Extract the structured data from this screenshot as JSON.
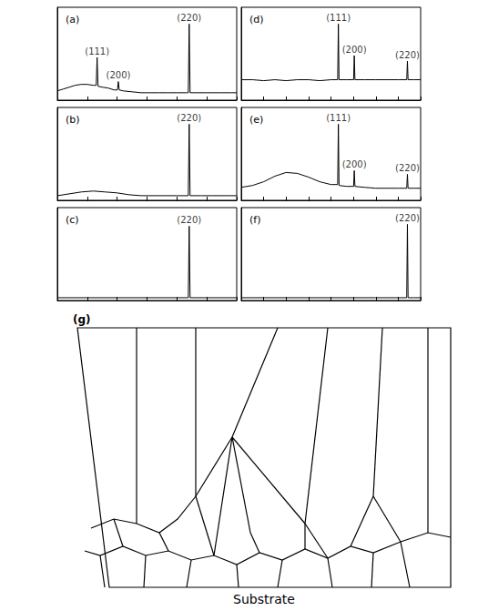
{
  "chart_data": [
    {
      "type": "line",
      "title": "(a)",
      "color": "#000000",
      "grid": false,
      "tick_labels": false,
      "xlim": [
        30,
        90
      ],
      "xticks": [
        30,
        40,
        50,
        60,
        70,
        80,
        90
      ],
      "ylim": [
        0,
        100
      ],
      "x": [
        30,
        32,
        34,
        36,
        38,
        40,
        42,
        43.0,
        43.3,
        43.6,
        45,
        47,
        49,
        50.1,
        50.4,
        50.7,
        52,
        55,
        58,
        61,
        64,
        67,
        70,
        73,
        73.8,
        74.1,
        74.4,
        76,
        80,
        84,
        88,
        90
      ],
      "values": [
        10,
        12,
        14,
        16,
        17,
        17,
        16,
        16,
        46,
        15,
        14,
        13,
        11,
        11,
        20,
        11,
        10,
        9,
        8,
        8,
        8,
        8,
        8,
        8,
        8,
        82,
        8,
        8,
        8,
        8,
        8,
        8
      ],
      "annotations": [
        {
          "x": 43.3,
          "label": "(111)"
        },
        {
          "x": 50.4,
          "label": "(200)"
        },
        {
          "x": 74.1,
          "label": "(220)"
        }
      ]
    },
    {
      "type": "line",
      "title": "(b)",
      "color": "#000000",
      "grid": false,
      "tick_labels": false,
      "xlim": [
        30,
        90
      ],
      "xticks": [
        30,
        40,
        50,
        60,
        70,
        80,
        90
      ],
      "ylim": [
        0,
        100
      ],
      "x": [
        30,
        34,
        38,
        42,
        46,
        50,
        54,
        58,
        62,
        66,
        70,
        73.8,
        74.1,
        74.4,
        78,
        82,
        86,
        90
      ],
      "values": [
        5,
        7,
        9,
        10,
        9,
        8,
        6,
        5,
        5,
        5,
        5,
        5,
        82,
        5,
        5,
        5,
        5,
        5
      ],
      "annotations": [
        {
          "x": 74.1,
          "label": "(220)"
        }
      ]
    },
    {
      "type": "line",
      "title": "(c)",
      "color": "#000000",
      "grid": false,
      "tick_labels": false,
      "xlim": [
        30,
        90
      ],
      "xticks": [
        30,
        40,
        50,
        60,
        70,
        80,
        90
      ],
      "ylim": [
        0,
        100
      ],
      "x": [
        30,
        40,
        50,
        60,
        70,
        73.8,
        74.1,
        74.4,
        80,
        90
      ],
      "values": [
        3,
        3,
        3,
        3,
        3,
        3,
        80,
        3,
        3,
        3
      ],
      "annotations": [
        {
          "x": 74.1,
          "label": "(220)"
        }
      ]
    },
    {
      "type": "line",
      "title": "(d)",
      "color": "#000000",
      "grid": false,
      "tick_labels": false,
      "xlim": [
        0,
        80
      ],
      "xticks": [
        0,
        10,
        20,
        30,
        40,
        50,
        60,
        70,
        80
      ],
      "ylim": [
        0,
        100
      ],
      "x": [
        0,
        5,
        10,
        15,
        20,
        25,
        30,
        35,
        40,
        43.0,
        43.3,
        43.6,
        47,
        50.1,
        50.4,
        50.7,
        55,
        60,
        65,
        70,
        73.8,
        74.1,
        74.4,
        77,
        80
      ],
      "values": [
        22,
        22,
        21,
        22,
        21,
        22,
        22,
        21,
        22,
        22,
        82,
        22,
        22,
        22,
        48,
        22,
        22,
        22,
        22,
        22,
        22,
        42,
        22,
        22,
        22
      ],
      "annotations": [
        {
          "x": 43.3,
          "label": "(111)"
        },
        {
          "x": 50.4,
          "label": "(200)"
        },
        {
          "x": 74.1,
          "label": "(220)"
        }
      ]
    },
    {
      "type": "line",
      "title": "(e)",
      "color": "#000000",
      "grid": false,
      "tick_labels": false,
      "xlim": [
        0,
        80
      ],
      "xticks": [
        0,
        10,
        20,
        30,
        40,
        50,
        60,
        70,
        80
      ],
      "ylim": [
        0,
        100
      ],
      "x": [
        0,
        5,
        10,
        15,
        20,
        25,
        30,
        35,
        40,
        43.0,
        43.3,
        43.6,
        47,
        50.1,
        50.4,
        50.7,
        55,
        60,
        65,
        70,
        73.8,
        74.1,
        74.4,
        77,
        80
      ],
      "values": [
        14,
        16,
        20,
        26,
        30,
        29,
        25,
        20,
        17,
        17,
        82,
        16,
        15,
        15,
        32,
        15,
        14,
        13,
        13,
        13,
        13,
        28,
        13,
        13,
        13
      ],
      "annotations": [
        {
          "x": 43.3,
          "label": "(111)"
        },
        {
          "x": 50.4,
          "label": "(200)"
        },
        {
          "x": 74.1,
          "label": "(220)"
        }
      ]
    },
    {
      "type": "line",
      "title": "(f)",
      "color": "#000000",
      "grid": false,
      "tick_labels": false,
      "xlim": [
        0,
        80
      ],
      "xticks": [
        0,
        10,
        20,
        30,
        40,
        50,
        60,
        70,
        80
      ],
      "ylim": [
        0,
        100
      ],
      "x": [
        0,
        20,
        40,
        60,
        70,
        73.8,
        74.1,
        74.4,
        77,
        80
      ],
      "values": [
        3,
        3,
        3,
        3,
        3,
        3,
        82,
        3,
        3,
        3
      ],
      "annotations": [
        {
          "x": 74.1,
          "label": "(220)"
        }
      ]
    }
  ],
  "diagram": {
    "label": "(g)",
    "caption": "Substrate"
  }
}
